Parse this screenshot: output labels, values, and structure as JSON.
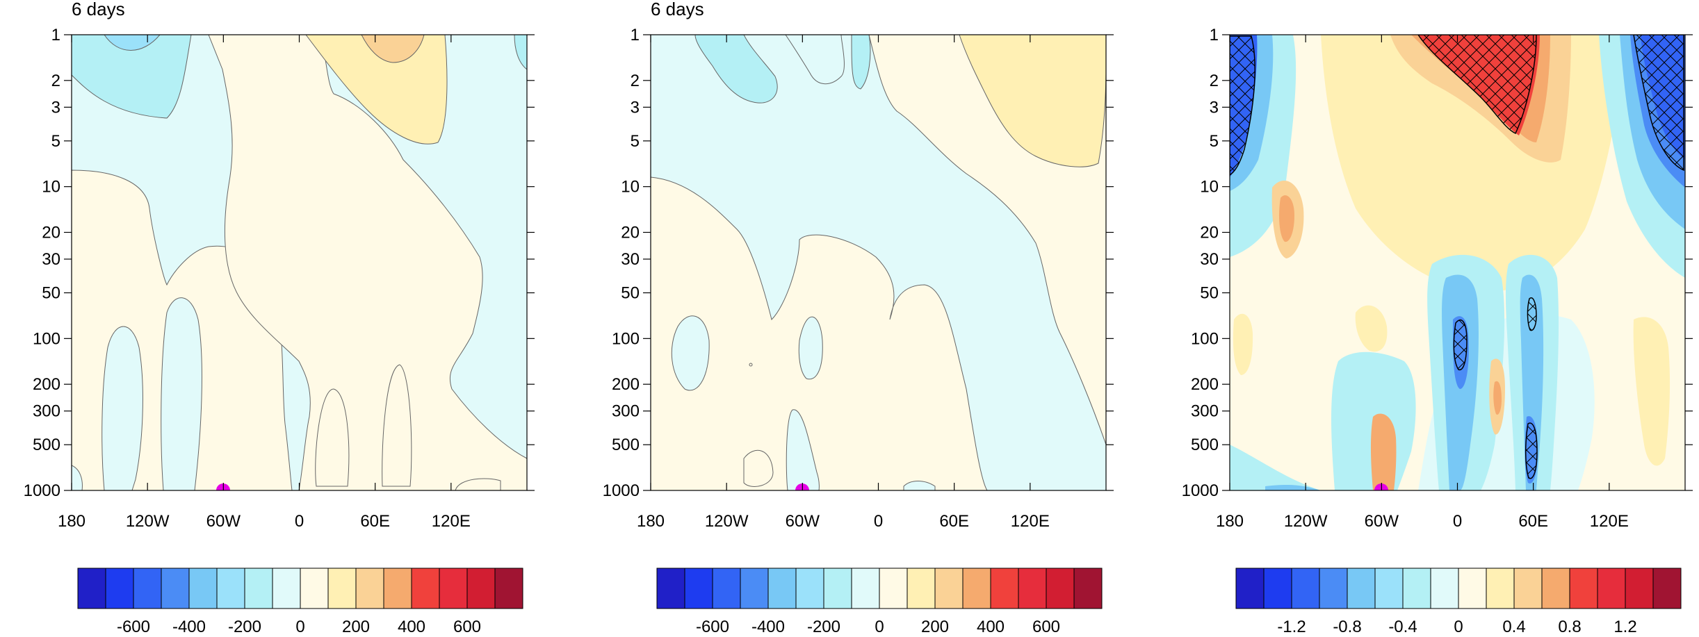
{
  "chart_data": [
    {
      "type": "heatmap",
      "title": "6 days",
      "x_ticks": [
        "180",
        "120W",
        "60W",
        "0",
        "60E",
        "120E"
      ],
      "x_tick_values": [
        -180,
        -120,
        -60,
        0,
        60,
        120
      ],
      "xlim": [
        -180,
        180
      ],
      "y_ticks": [
        "1",
        "2",
        "3",
        "5",
        "10",
        "20",
        "30",
        "50",
        "100",
        "200",
        "300",
        "500",
        "1000"
      ],
      "y_tick_values": [
        1,
        2,
        3,
        5,
        10,
        20,
        30,
        50,
        100,
        200,
        300,
        500,
        1000
      ],
      "ylim": [
        1,
        1000
      ],
      "y_scale": "log",
      "y_reversed": true,
      "marker": {
        "x": -60,
        "y": 1000,
        "color": "#e600e6"
      },
      "colorbar": {
        "labels": [
          "-600",
          "-400",
          "-200",
          "0",
          "200",
          "400",
          "600"
        ],
        "colors": [
          "#2020c8",
          "#1e3cf0",
          "#3264f5",
          "#4b8cf5",
          "#78c8f5",
          "#9be1fa",
          "#b4f0f5",
          "#e1fafa",
          "#fffae6",
          "#fff0b4",
          "#fad296",
          "#f5aa6e",
          "#f0413c",
          "#e62d3c",
          "#d21e32",
          "#a01432"
        ]
      }
    },
    {
      "type": "heatmap",
      "title": "6 days",
      "x_ticks": [
        "180",
        "120W",
        "60W",
        "0",
        "60E",
        "120E"
      ],
      "x_tick_values": [
        -180,
        -120,
        -60,
        0,
        60,
        120
      ],
      "xlim": [
        -180,
        180
      ],
      "y_ticks": [
        "1",
        "2",
        "3",
        "5",
        "10",
        "20",
        "30",
        "50",
        "100",
        "200",
        "300",
        "500",
        "1000"
      ],
      "y_tick_values": [
        1,
        2,
        3,
        5,
        10,
        20,
        30,
        50,
        100,
        200,
        300,
        500,
        1000
      ],
      "ylim": [
        1,
        1000
      ],
      "y_scale": "log",
      "y_reversed": true,
      "marker": {
        "x": -60,
        "y": 1000,
        "color": "#e600e6"
      },
      "colorbar": {
        "labels": [
          "-600",
          "-400",
          "-200",
          "0",
          "200",
          "400",
          "600"
        ],
        "colors": [
          "#2020c8",
          "#1e3cf0",
          "#3264f5",
          "#4b8cf5",
          "#78c8f5",
          "#9be1fa",
          "#b4f0f5",
          "#e1fafa",
          "#fffae6",
          "#fff0b4",
          "#fad296",
          "#f5aa6e",
          "#f0413c",
          "#e62d3c",
          "#d21e32",
          "#a01432"
        ]
      }
    },
    {
      "type": "heatmap",
      "title": "",
      "x_ticks": [
        "180",
        "120W",
        "60W",
        "0",
        "60E",
        "120E"
      ],
      "x_tick_values": [
        -180,
        -120,
        -60,
        0,
        60,
        120
      ],
      "xlim": [
        -180,
        180
      ],
      "y_ticks": [
        "1",
        "2",
        "3",
        "5",
        "10",
        "20",
        "30",
        "50",
        "100",
        "200",
        "300",
        "500",
        "1000"
      ],
      "y_tick_values": [
        1,
        2,
        3,
        5,
        10,
        20,
        30,
        50,
        100,
        200,
        300,
        500,
        1000
      ],
      "ylim": [
        1,
        1000
      ],
      "y_scale": "log",
      "y_reversed": true,
      "marker": {
        "x": -60,
        "y": 1000,
        "color": "#e600e6"
      },
      "hatching": "cross-hatched regions with black contour outlines",
      "colorbar": {
        "labels": [
          "-1.2",
          "-0.8",
          "-0.4",
          "0",
          "0.4",
          "0.8",
          "1.2"
        ],
        "colors": [
          "#2020c8",
          "#1e3cf0",
          "#3264f5",
          "#4b8cf5",
          "#78c8f5",
          "#9be1fa",
          "#b4f0f5",
          "#e1fafa",
          "#fffae6",
          "#fff0b4",
          "#fad296",
          "#f5aa6e",
          "#f0413c",
          "#e62d3c",
          "#d21e32",
          "#a01432"
        ]
      }
    }
  ]
}
